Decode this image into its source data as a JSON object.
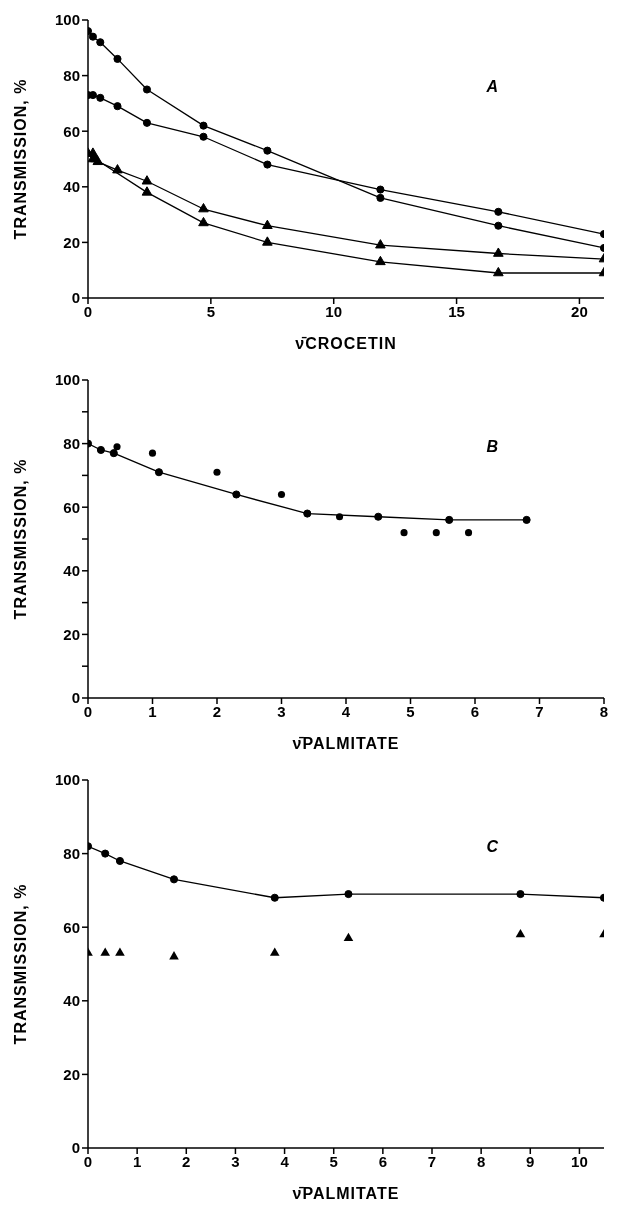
{
  "chart_data": [
    {
      "type": "scatter",
      "xlabel": "ν̄CROCETIN",
      "ylabel": "TRANSMISSION, %",
      "annotations": [
        "A"
      ],
      "xlim": [
        0,
        21
      ],
      "ylim": [
        0,
        100
      ],
      "xticks": [
        0,
        5,
        10,
        15,
        20
      ],
      "yticks": [
        0,
        20,
        40,
        60,
        80,
        100
      ],
      "series": [
        {
          "type": "line",
          "marker": "circle",
          "color": "#000000",
          "x": [
            0,
            0.2,
            0.5,
            1.2,
            2.4,
            4.7,
            7.3,
            11.9,
            16.7,
            21
          ],
          "values": [
            96,
            94,
            92,
            86,
            75,
            62,
            53,
            36,
            26,
            18
          ]
        },
        {
          "type": "line",
          "marker": "circle",
          "color": "#000000",
          "x": [
            0,
            0.2,
            0.5,
            1.2,
            2.4,
            4.7,
            7.3,
            11.9,
            16.7,
            21
          ],
          "values": [
            73,
            73,
            72,
            69,
            63,
            58,
            48,
            39,
            31,
            23
          ]
        },
        {
          "type": "line",
          "marker": "triangle",
          "color": "#000000",
          "x": [
            0,
            0.2,
            0.4,
            1.2,
            2.4,
            4.7,
            7.3,
            11.9,
            16.7,
            21
          ],
          "values": [
            52,
            50,
            49,
            46,
            42,
            32,
            26,
            19,
            16,
            14
          ]
        },
        {
          "type": "line",
          "marker": "triangle",
          "color": "#000000",
          "x": [
            0.2,
            0.3,
            2.4,
            4.7,
            7.3,
            11.9,
            16.7,
            21
          ],
          "values": [
            52,
            50,
            38,
            27,
            20,
            13,
            9,
            9
          ]
        }
      ]
    },
    {
      "type": "scatter",
      "xlabel": "ν̄PALMITATE",
      "ylabel": "TRANSMISSION, %",
      "annotations": [
        "B"
      ],
      "xlim": [
        0,
        8
      ],
      "ylim": [
        0,
        100
      ],
      "xticks": [
        0,
        1,
        2,
        3,
        4,
        5,
        6,
        7,
        8
      ],
      "yticks": [
        0,
        {
          "value": 10,
          "label": null
        },
        20,
        {
          "value": 30,
          "label": null
        },
        40,
        {
          "value": 50,
          "label": null
        },
        60,
        {
          "value": 70,
          "label": null
        },
        80,
        {
          "value": 90,
          "label": null
        },
        100
      ],
      "series": [
        {
          "type": "line",
          "marker": "circle",
          "color": "#000000",
          "x": [
            0,
            0.2,
            0.4,
            1.1,
            2.3,
            3.4,
            4.5,
            5.6,
            6.8
          ],
          "values": [
            80,
            78,
            77,
            71,
            64,
            58,
            57,
            56,
            56
          ]
        },
        {
          "type": "scatter",
          "marker": "circle",
          "color": "#000000",
          "x": [
            0.45,
            1,
            2,
            3,
            3.9,
            4.9,
            5.4,
            5.9
          ],
          "values": [
            79,
            77,
            71,
            64,
            57,
            52,
            52,
            52
          ]
        }
      ]
    },
    {
      "type": "scatter",
      "xlabel": "ν̄PALMITATE",
      "ylabel": "TRANSMISSION, %",
      "annotations": [
        "C"
      ],
      "xlim": [
        0,
        10.5
      ],
      "ylim": [
        0,
        100
      ],
      "xticks": [
        0,
        1,
        2,
        3,
        4,
        5,
        6,
        7,
        8,
        9,
        10
      ],
      "yticks": [
        0,
        20,
        40,
        60,
        80,
        100
      ],
      "series": [
        {
          "type": "line",
          "marker": "circle",
          "color": "#000000",
          "x": [
            0,
            0.35,
            0.65,
            1.75,
            3.8,
            5.3,
            8.8,
            10.5
          ],
          "values": [
            82,
            80,
            78,
            73,
            68,
            69,
            69,
            68
          ]
        },
        {
          "type": "scatter",
          "marker": "triangle",
          "color": "#000000",
          "x": [
            0,
            0.35,
            0.65,
            1.75,
            3.8,
            5.3,
            8.8,
            10.5
          ],
          "values": [
            53,
            53,
            53,
            52,
            53,
            57,
            58,
            58
          ]
        }
      ]
    }
  ]
}
